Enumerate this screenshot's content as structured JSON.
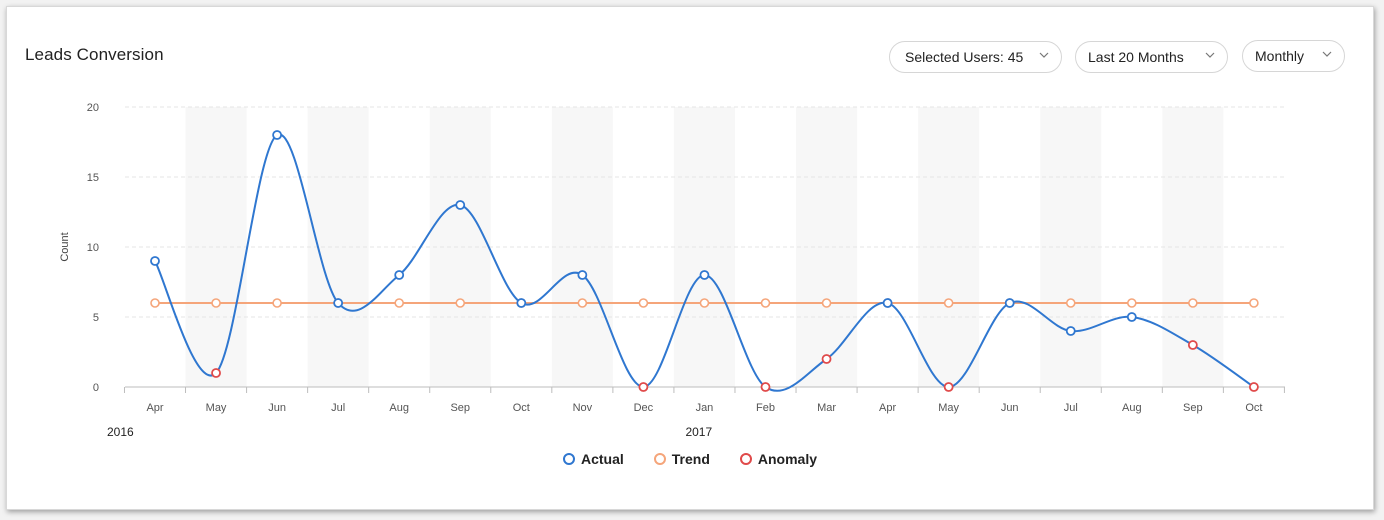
{
  "title": "Leads Conversion",
  "controls": {
    "users_label": "Selected Users: 45",
    "range_label": "Last 20 Months",
    "interval_label": "Monthly"
  },
  "colors": {
    "actual": "#2f77d0",
    "trend": "#f5a57a",
    "anomaly": "#e04a4a",
    "band": "#f7f7f7"
  },
  "chart_data": {
    "type": "line",
    "title": "Leads Conversion",
    "xlabel": "",
    "ylabel": "Count",
    "ylim": [
      0,
      20
    ],
    "yticks": [
      0,
      5,
      10,
      15,
      20
    ],
    "grid": true,
    "legend_position": "bottom",
    "categories": [
      "Apr",
      "May",
      "Jun",
      "Jul",
      "Aug",
      "Sep",
      "Oct",
      "Nov",
      "Dec",
      "Jan",
      "Feb",
      "Mar",
      "Apr",
      "May",
      "Jun",
      "Jul",
      "Aug",
      "Sep",
      "Oct"
    ],
    "year_labels": [
      {
        "index": 0,
        "label": "2016"
      },
      {
        "index": 9,
        "label": "2017"
      }
    ],
    "series": [
      {
        "name": "Actual",
        "values": [
          9,
          1,
          18,
          6,
          8,
          13,
          6,
          8,
          0,
          8,
          0,
          2,
          6,
          0,
          6,
          4,
          5,
          3,
          0
        ]
      },
      {
        "name": "Trend",
        "values": [
          6,
          6,
          6,
          6,
          6,
          6,
          6,
          6,
          6,
          6,
          6,
          6,
          6,
          6,
          6,
          6,
          6,
          6,
          6
        ]
      }
    ],
    "anomaly_indices": [
      1,
      8,
      10,
      11,
      13,
      17,
      18
    ],
    "legend": [
      "Actual",
      "Trend",
      "Anomaly"
    ]
  }
}
